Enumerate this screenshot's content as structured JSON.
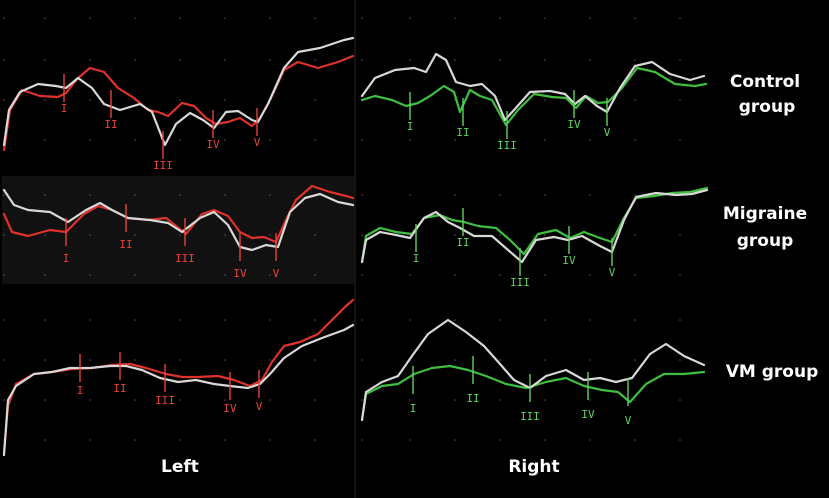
{
  "chart_data": {
    "type": "line",
    "side_labels": [
      "Left",
      "Right"
    ],
    "group_labels": [
      [
        "Control",
        "group"
      ],
      [
        "Migraine",
        "group"
      ],
      [
        "VM group"
      ]
    ],
    "colors": {
      "background": "#000000",
      "gray_trace": "#d8d8d8",
      "left_trace": "#e0322c",
      "right_trace": "#3fbf3f",
      "left_marker": "#e8423a",
      "right_marker": "#5fd35f"
    },
    "panels": [
      {
        "side": "Left",
        "group": "Control group",
        "markers": [
          {
            "label": "I",
            "x": 64
          },
          {
            "label": "II",
            "x": 111
          },
          {
            "label": "III",
            "x": 163
          },
          {
            "label": "IV",
            "x": 213
          },
          {
            "label": "V",
            "x": 257
          }
        ]
      },
      {
        "side": "Right",
        "group": "Control group",
        "markers": [
          {
            "label": "I",
            "x": 410
          },
          {
            "label": "II",
            "x": 463
          },
          {
            "label": "III",
            "x": 507
          },
          {
            "label": "IV",
            "x": 574
          },
          {
            "label": "V",
            "x": 607
          }
        ]
      },
      {
        "side": "Left",
        "group": "Migraine group",
        "markers": [
          {
            "label": "I",
            "x": 66
          },
          {
            "label": "II",
            "x": 126
          },
          {
            "label": "III",
            "x": 185
          },
          {
            "label": "IV",
            "x": 240
          },
          {
            "label": "V",
            "x": 276
          }
        ]
      },
      {
        "side": "Right",
        "group": "Migraine group",
        "markers": [
          {
            "label": "I",
            "x": 416
          },
          {
            "label": "II",
            "x": 463
          },
          {
            "label": "III",
            "x": 520
          },
          {
            "label": "IV",
            "x": 569
          },
          {
            "label": "V",
            "x": 612
          }
        ]
      },
      {
        "side": "Left",
        "group": "VM group",
        "markers": [
          {
            "label": "I",
            "x": 80
          },
          {
            "label": "II",
            "x": 120
          },
          {
            "label": "III",
            "x": 165
          },
          {
            "label": "IV",
            "x": 230
          },
          {
            "label": "V",
            "x": 259
          }
        ]
      },
      {
        "side": "Right",
        "group": "VM group",
        "markers": [
          {
            "label": "I",
            "x": 413
          },
          {
            "label": "II",
            "x": 473
          },
          {
            "label": "III",
            "x": 530
          },
          {
            "label": "IV",
            "x": 588
          },
          {
            "label": "V",
            "x": 628
          }
        ]
      }
    ]
  }
}
